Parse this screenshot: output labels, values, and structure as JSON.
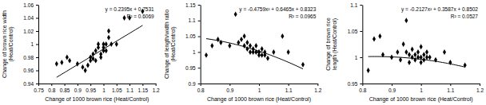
{
  "chart_data": [
    {
      "type": "scatter",
      "color": "#000000",
      "marker": "diamond",
      "xlabel": "Change of 1000 brown rice (Heat/Control)",
      "ylabel": [
        "Change of  brown rice width",
        "(Heat/Control)"
      ],
      "annotations": [
        "y = 0.2395x + 0.7531",
        "R² = 0.6069"
      ],
      "trendline": {
        "coefficients": [
          0.2395,
          0.7531
        ]
      },
      "x": [
        0.82,
        0.84,
        0.86,
        0.87,
        0.9,
        0.92,
        0.93,
        0.94,
        0.95,
        0.95,
        0.96,
        0.96,
        0.97,
        0.97,
        0.98,
        0.98,
        0.99,
        0.99,
        1.0,
        1.0,
        1.0,
        1.01,
        1.01,
        1.02,
        1.02,
        1.03,
        1.05,
        1.08,
        1.1,
        1.15
      ],
      "values": [
        0.97,
        0.972,
        0.98,
        0.975,
        0.97,
        0.965,
        0.96,
        0.968,
        0.975,
        0.98,
        0.978,
        0.985,
        0.99,
        0.975,
        0.995,
        1.0,
        0.985,
        0.98,
        0.99,
        1.0,
        0.995,
        1.0,
        0.99,
        1.01,
        1.02,
        1.0,
        1.0,
        1.04,
        1.04,
        1.05
      ],
      "xlim": [
        0.75,
        1.2
      ],
      "ylim": [
        0.94,
        1.06
      ],
      "xticks": [
        0.75,
        0.8,
        0.85,
        0.9,
        0.95,
        1,
        1.05,
        1.1,
        1.15,
        1.2
      ],
      "yticks": [
        0.94,
        0.96,
        0.98,
        1,
        1.02,
        1.04,
        1.06
      ]
    },
    {
      "type": "scatter",
      "color": "#000000",
      "marker": "diamond",
      "xlabel": "Change of 1000 brown rice (Heat/Control)",
      "ylabel": [
        "Change of length/width ratio",
        "(Heat/Control)"
      ],
      "annotations": [
        "y = -0.4759x² + 0.6465x + 0.8323",
        "R² = 0.0965"
      ],
      "trendline": {
        "coefficients": [
          -0.4759,
          0.6465,
          0.8323
        ]
      },
      "x": [
        0.82,
        0.84,
        0.86,
        0.87,
        0.9,
        0.92,
        0.93,
        0.94,
        0.95,
        0.95,
        0.96,
        0.96,
        0.97,
        0.97,
        0.98,
        0.98,
        0.99,
        0.99,
        1.0,
        1.0,
        1.0,
        1.01,
        1.01,
        1.02,
        1.02,
        1.03,
        1.05,
        1.08,
        1.1,
        1.15
      ],
      "values": [
        0.99,
        1.02,
        1.04,
        1.03,
        1.02,
        1.12,
        1.03,
        1.04,
        1.05,
        1.02,
        1.03,
        1.01,
        1.0,
        1.02,
        1.01,
        1.0,
        1.0,
        1.02,
        1.0,
        0.99,
        1.0,
        0.99,
        1.01,
        0.99,
        1.0,
        0.98,
        1.0,
        1.05,
        1.0,
        0.96
      ],
      "xlim": [
        0.8,
        1.2
      ],
      "ylim": [
        0.9,
        1.15
      ],
      "xticks": [
        0.8,
        0.9,
        1,
        1.1,
        1.2
      ],
      "yticks": [
        0.9,
        0.95,
        1,
        1.05,
        1.1,
        1.15
      ]
    },
    {
      "type": "scatter",
      "color": "#000000",
      "marker": "diamond",
      "xlabel": "Change of 1000 brown rice (Heat/Control)",
      "ylabel": [
        "Change of brown rice",
        "length (Heat/Control)"
      ],
      "annotations": [
        "y = -0.2127x² + 0.3587x + 0.8502",
        "R² = 0.0527"
      ],
      "trendline": {
        "coefficients": [
          -0.2127,
          0.3587,
          0.8502
        ]
      },
      "x": [
        0.82,
        0.84,
        0.86,
        0.87,
        0.9,
        0.92,
        0.93,
        0.94,
        0.95,
        0.95,
        0.96,
        0.96,
        0.97,
        0.97,
        0.98,
        0.98,
        0.99,
        0.99,
        1.0,
        1.0,
        1.0,
        1.01,
        1.01,
        1.02,
        1.02,
        1.03,
        1.05,
        1.08,
        1.1,
        1.15
      ],
      "values": [
        0.975,
        1.035,
        1.04,
        1.005,
        1.0,
        1.01,
        0.995,
        1.025,
        1.07,
        1.01,
        1.005,
        0.99,
        1.0,
        1.015,
        0.995,
        1.005,
        1.0,
        1.01,
        0.99,
        1.0,
        1.02,
        1.005,
        0.995,
        1.0,
        1.01,
        1.0,
        0.995,
        1.01,
        0.99,
        0.985
      ],
      "xlim": [
        0.8,
        1.2
      ],
      "ylim": [
        0.95,
        1.1
      ],
      "xticks": [
        0.8,
        0.9,
        1,
        1.1,
        1.2
      ],
      "yticks": [
        0.95,
        1,
        1.05,
        1.1
      ]
    }
  ]
}
